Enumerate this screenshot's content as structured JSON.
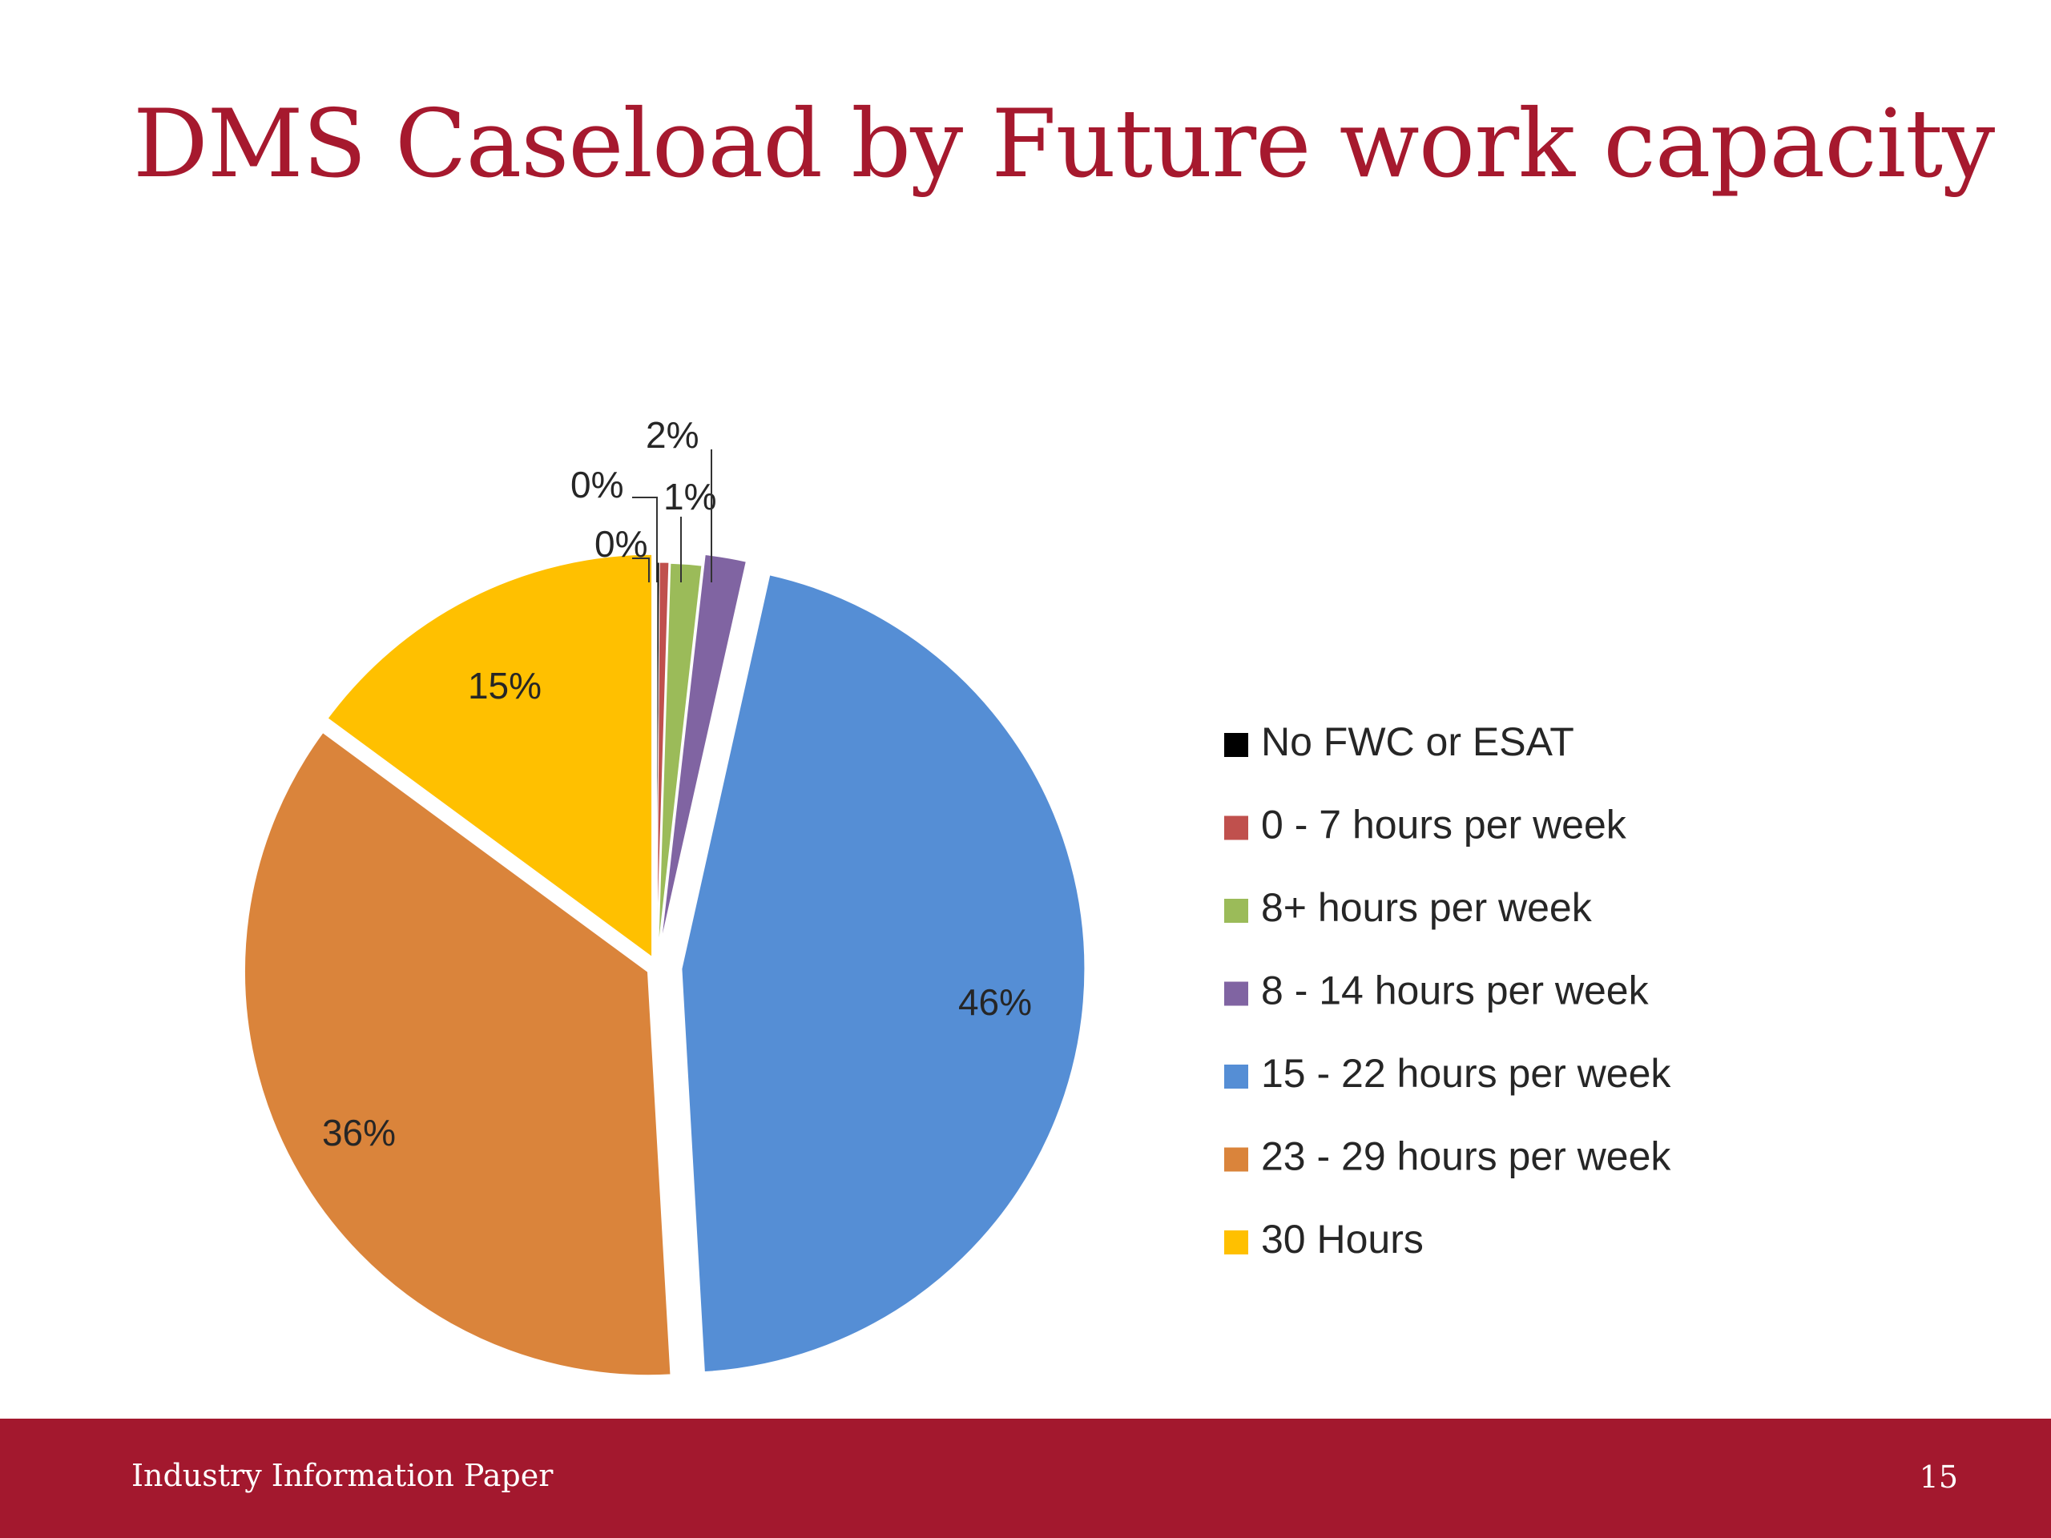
{
  "slide": {
    "title": "DMS Caseload by Future work capacity",
    "footer_left": "Industry Information Paper",
    "page_number": "15"
  },
  "colors": {
    "title": "#A6192E",
    "footer": "#A3182E"
  },
  "chart_data": {
    "type": "pie",
    "title": "",
    "legend_position": "right",
    "slices": [
      {
        "label": "No FWC or ESAT",
        "value": 0.1,
        "data_label": "0%",
        "color": "#000000"
      },
      {
        "label": "0 - 7 hours per week",
        "value": 0.4,
        "data_label": "0%",
        "color": "#C0504D"
      },
      {
        "label": "8+ hours per week",
        "value": 1.3,
        "data_label": "1%",
        "color": "#9BBB59"
      },
      {
        "label": "8 - 14 hours per week",
        "value": 1.7,
        "data_label": "2%",
        "color": "#8064A2"
      },
      {
        "label": "15 - 22 hours per week",
        "value": 45.6,
        "data_label": "46%",
        "color": "#558ED5"
      },
      {
        "label": "23 - 29 hours per week",
        "value": 36.0,
        "data_label": "36%",
        "color": "#DA843B"
      },
      {
        "label": "30 Hours",
        "value": 14.9,
        "data_label": "15%",
        "color": "#FFC000"
      }
    ]
  }
}
